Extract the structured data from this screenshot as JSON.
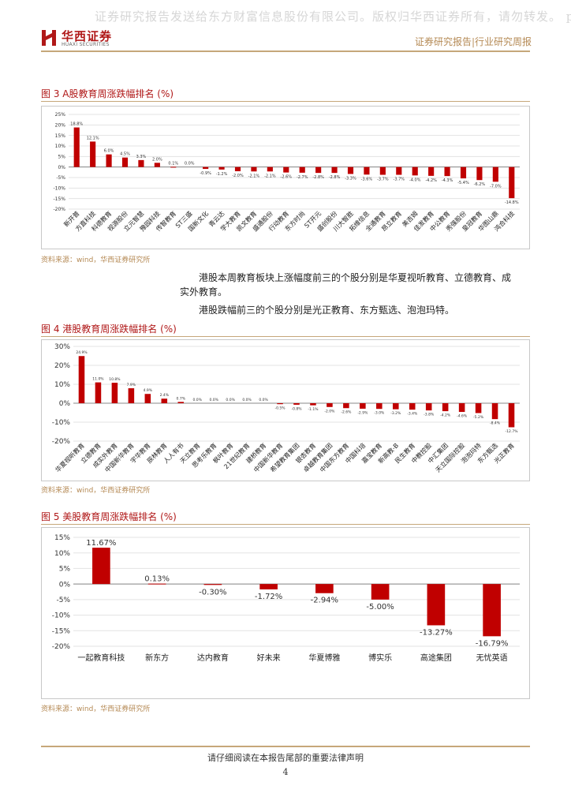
{
  "watermark": "证券研究报告发送给东方财富信息股份有限公司。版权归华西证券所有，请勿转发。 p",
  "header": {
    "logo_cn": "华西证券",
    "logo_en": "HUAXI SECURITIES",
    "report_type": "证券研究报告|行业研究周报"
  },
  "figures": [
    {
      "title": "图 3 A股教育周涨跌幅排名 (%)",
      "source": "资料来源：wind，华西证券研究所"
    },
    {
      "title": "图 4 港股教育周涨跌幅排名 (%)",
      "source": "资料来源：wind，华西证券研究所"
    },
    {
      "title": "图 5 美股教育周涨跌幅排名 (%)",
      "source": "资料来源：wind，华西证券研究所"
    }
  ],
  "paragraphs": {
    "p1_line1": "港股本周教育板块上涨幅度前三的个股分别是华夏视听教育、立德教育、成",
    "p1_line2": "实外教育。",
    "p2": "港股跌幅前三的个股分别是光正教育、东方甄选、泡泡玛特。"
  },
  "chart_data": [
    {
      "type": "bar",
      "title": "",
      "categories": [
        "新开普",
        "方直科技",
        "科德教育",
        "视源股份",
        "立元智慧",
        "豫园科技",
        "传智教育",
        "ST三盛",
        "国新文化",
        "青云达",
        "学大教育",
        "凯文教育",
        "盛通股份",
        "行动教育",
        "东方时尚",
        "ST开元",
        "盛创股份",
        "川大智胜",
        "拓维信息",
        "全通教育",
        "昂立教育",
        "美吉姆",
        "佳发教育",
        "中公教育",
        "秀强股份",
        "皇冠教育",
        "华图山鼎",
        "鸿合科技"
      ],
      "values": [
        18.8,
        12.1,
        6.0,
        4.5,
        3.3,
        2.0,
        0.1,
        0.0,
        -0.9,
        -1.2,
        -2.0,
        -2.1,
        -2.1,
        -2.6,
        -2.7,
        -2.8,
        -2.8,
        -3.3,
        -3.6,
        -3.7,
        -3.7,
        -4.0,
        -4.2,
        -4.3,
        -5.4,
        -6.2,
        -7.0,
        -14.8
      ],
      "labels": [
        "18.8%",
        "12.1%",
        "6.0%",
        "4.5%",
        "3.3%",
        "2.0%",
        "0.1%",
        "0.0%",
        "-0.9%",
        "-1.2%",
        "-2.0%",
        "-2.1%",
        "-2.1%",
        "-2.6%",
        "-2.7%",
        "-2.8%",
        "-2.8%",
        "-3.3%",
        "-3.6%",
        "-3.7%",
        "-3.7%",
        "-4.0%",
        "-4.2%",
        "-4.3%",
        "-5.4%",
        "-6.2%",
        "-7.0%",
        "-14.8%"
      ],
      "yticks": [
        "25%",
        "20%",
        "15%",
        "10%",
        "5%",
        "0%",
        "-5%",
        "-10%",
        "-15%",
        "-20%"
      ],
      "ylim": [
        -20,
        25
      ],
      "grid": true,
      "color": "#c00000"
    },
    {
      "type": "bar",
      "title": "",
      "categories": [
        "华夏视听教育",
        "立德教育",
        "成实外教育",
        "中国新华教育",
        "宇华教育",
        "辰林教育",
        "人人有书",
        "天立教育",
        "思考乐教育",
        "枫叶教育",
        "21世纪教育",
        "建桥教育",
        "中国新华教育",
        "希望教育集团",
        "银杏教育",
        "卓越教育集团",
        "中国东方教育",
        "中国科培",
        "嘉宝教育",
        "新高教-B",
        "民生教育",
        "中教控股",
        "中汇集团",
        "天立国际控股",
        "泡泡玛特",
        "东方甄选",
        "光正教育"
      ],
      "values": [
        24.9,
        11.0,
        10.8,
        7.9,
        4.9,
        2.4,
        0.7,
        0.0,
        0.0,
        0.0,
        0.0,
        0.0,
        -0.5,
        -0.8,
        -1.1,
        -2.0,
        -2.6,
        -2.9,
        -3.0,
        -3.2,
        -3.4,
        -3.8,
        -4.2,
        -4.6,
        -5.2,
        -8.4,
        -12.7
      ],
      "labels": [
        "24.9%",
        "11.0%",
        "10.8%",
        "7.9%",
        "4.9%",
        "2.4%",
        "0.7%",
        "0.0%",
        "0.0%",
        "0.0%",
        "0.0%",
        "0.0%",
        "-0.5%",
        "-0.8%",
        "-1.1%",
        "-2.0%",
        "-2.6%",
        "-2.9%",
        "-3.0%",
        "-3.2%",
        "-3.4%",
        "-3.8%",
        "-4.2%",
        "-4.6%",
        "-5.2%",
        "-8.4%",
        "-12.7%"
      ],
      "yticks": [
        "30%",
        "20%",
        "10%",
        "0%",
        "-10%",
        "-20%"
      ],
      "ylim": [
        -20,
        30
      ],
      "grid": true,
      "color": "#c00000"
    },
    {
      "type": "bar",
      "title": "",
      "categories": [
        "一起教育科技",
        "新东方",
        "达内教育",
        "好未来",
        "华夏博雅",
        "博实乐",
        "高途集团",
        "无忧英语"
      ],
      "values": [
        11.67,
        0.13,
        -0.3,
        -1.72,
        -2.94,
        -5.0,
        -13.27,
        -16.79
      ],
      "labels": [
        "11.67%",
        "0.13%",
        "-0.30%",
        "-1.72%",
        "-2.94%",
        "-5.00%",
        "-13.27%",
        "-16.79%"
      ],
      "yticks": [
        "15%",
        "10%",
        "5%",
        "0%",
        "-5%",
        "-10%",
        "-15%",
        "-20%"
      ],
      "ylim": [
        -20,
        15
      ],
      "grid": true,
      "color": "#c00000"
    }
  ],
  "footer": {
    "note": "请仔细阅读在本报告尾部的重要法律声明",
    "page": "4"
  }
}
